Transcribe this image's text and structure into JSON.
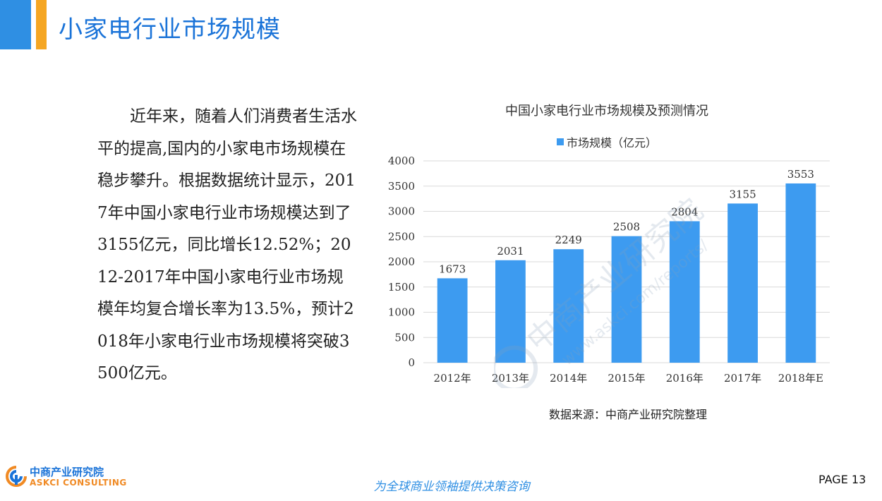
{
  "header": {
    "title": "小家电行业市场规模"
  },
  "body": {
    "paragraph": "近年来，随着人们消费者生活水平的提高,国内的小家电市场规模在稳步攀升。根据数据统计显示，2017年中国小家电行业市场规模达到了3155亿元，同比增长12.52%；2012-2017年中国小家电行业市场规模年均复合增长率为13.5%，预计2018年小家电行业市场规模将突破3500亿元。"
  },
  "chart_data": {
    "type": "bar",
    "title": "中国小家电行业市场规模及预测情况",
    "categories": [
      "2012年",
      "2013年",
      "2014年",
      "2015年",
      "2016年",
      "2017年",
      "2018年E"
    ],
    "series": [
      {
        "name": "市场规模（亿元）",
        "values": [
          1673,
          2031,
          2249,
          2508,
          2804,
          3155,
          3553
        ]
      }
    ],
    "xlabel": "",
    "ylabel": "",
    "ylim": [
      0,
      4000
    ],
    "yticks": [
      0,
      500,
      1000,
      1500,
      2000,
      2500,
      3000,
      3500,
      4000
    ],
    "grid": true,
    "legend_position": "top",
    "bar_color": "#3d9bf0",
    "data_labels": true
  },
  "source": "数据来源：中商产业研究院整理",
  "watermark": {
    "cn": "中商产业研究院",
    "url": "www.askci.com/reports/"
  },
  "footer": {
    "logo_cn": "中商产业研究院",
    "logo_en": "ASKCI CONSULTING",
    "slogan": "为全球商业领袖提供决策咨询",
    "page": "PAGE  13"
  },
  "colors": {
    "accent_blue": "#2f8fe3",
    "accent_orange": "#f5a623",
    "title_blue": "#1a73d8",
    "bar": "#3d9bf0"
  }
}
